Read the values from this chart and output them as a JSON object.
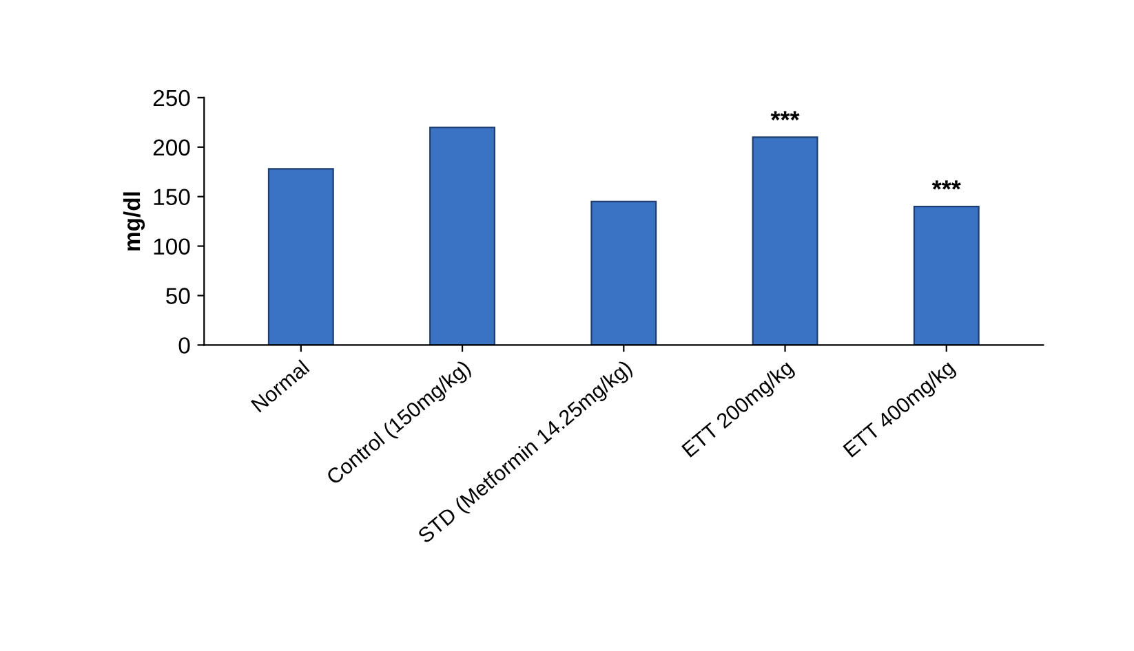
{
  "chart_data": {
    "type": "bar",
    "categories": [
      "Normal",
      "Control (150mg/kg)",
      "STD (Metformin 14.25mg/kg)",
      "ETT 200mg/kg",
      "ETT 400mg/kg"
    ],
    "values": [
      178,
      220,
      145,
      210,
      140
    ],
    "color": "#3a72c4",
    "ylabel": "mg/dl",
    "ylim": [
      0,
      250
    ],
    "yticks": [
      0,
      50,
      100,
      150,
      200,
      250
    ],
    "annotations": [
      {
        "text": "***",
        "x": "ETT 200mg/kg",
        "y": 210
      },
      {
        "text": "***",
        "x": "ETT 400mg/kg",
        "y": 140
      }
    ],
    "grid": false
  }
}
